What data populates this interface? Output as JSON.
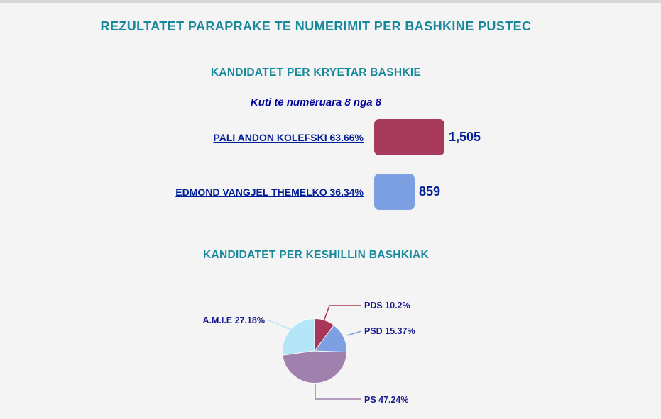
{
  "page": {
    "title": "REZULTATET PARAPRAKE TE NUMERIMIT PER BASHKINE PUSTEC"
  },
  "sections": {
    "mayor": {
      "heading": "KANDIDATET PER KRYETAR BASHKIE",
      "boxes_counted_note": "Kuti të numëruara 8 nga 8"
    },
    "council": {
      "heading": "KANDIDATET PER KESHILLIN BASHKIAK"
    }
  },
  "chart_data": [
    {
      "type": "bar",
      "title": "KANDIDATET PER KRYETAR BASHKIE",
      "orientation": "horizontal",
      "categories": [
        "PALI ANDON KOLEFSKI",
        "EDMOND VANGJEL THEMELKO"
      ],
      "values": [
        1505,
        859
      ],
      "percents": [
        63.66,
        36.34
      ],
      "candidates": [
        {
          "label": "PALI ANDON KOLEFSKI 63.66%",
          "name": "PALI ANDON KOLEFSKI",
          "percent": 63.66,
          "votes": 1505,
          "value_label": "1,505",
          "color": "#a83a5c"
        },
        {
          "label": "EDMOND VANGJEL THEMELKO 36.34%",
          "name": "EDMOND VANGJEL THEMELKO",
          "percent": 36.34,
          "votes": 859,
          "value_label": "859",
          "color": "#7da0e2"
        }
      ]
    },
    {
      "type": "pie",
      "title": "KANDIDATET PER KESHILLIN BASHKIAK",
      "start_angle_deg": -90,
      "direction": "clockwise",
      "legend_position": "callout-labels",
      "slices": [
        {
          "party": "PDS",
          "percent": 10.2,
          "label": "PDS 10.2%",
          "color": "#a8365a"
        },
        {
          "party": "PSD",
          "percent": 15.37,
          "label": "PSD 15.37%",
          "color": "#7da0e2"
        },
        {
          "party": "PS",
          "percent": 47.24,
          "label": "PS 47.24%",
          "color": "#a080ad"
        },
        {
          "party": "A.M.I.E",
          "percent": 27.18,
          "label": "A.M.I.E 27.18%",
          "color": "#b5e6f7"
        }
      ]
    }
  ],
  "colors": {
    "heading_teal": "#17889c",
    "link_navy": "#001e96",
    "note_navy": "#0000a0",
    "pie_label_navy": "#1a1a8c",
    "background": "#f4f4f4",
    "top_strip": "#d8d8d8"
  }
}
